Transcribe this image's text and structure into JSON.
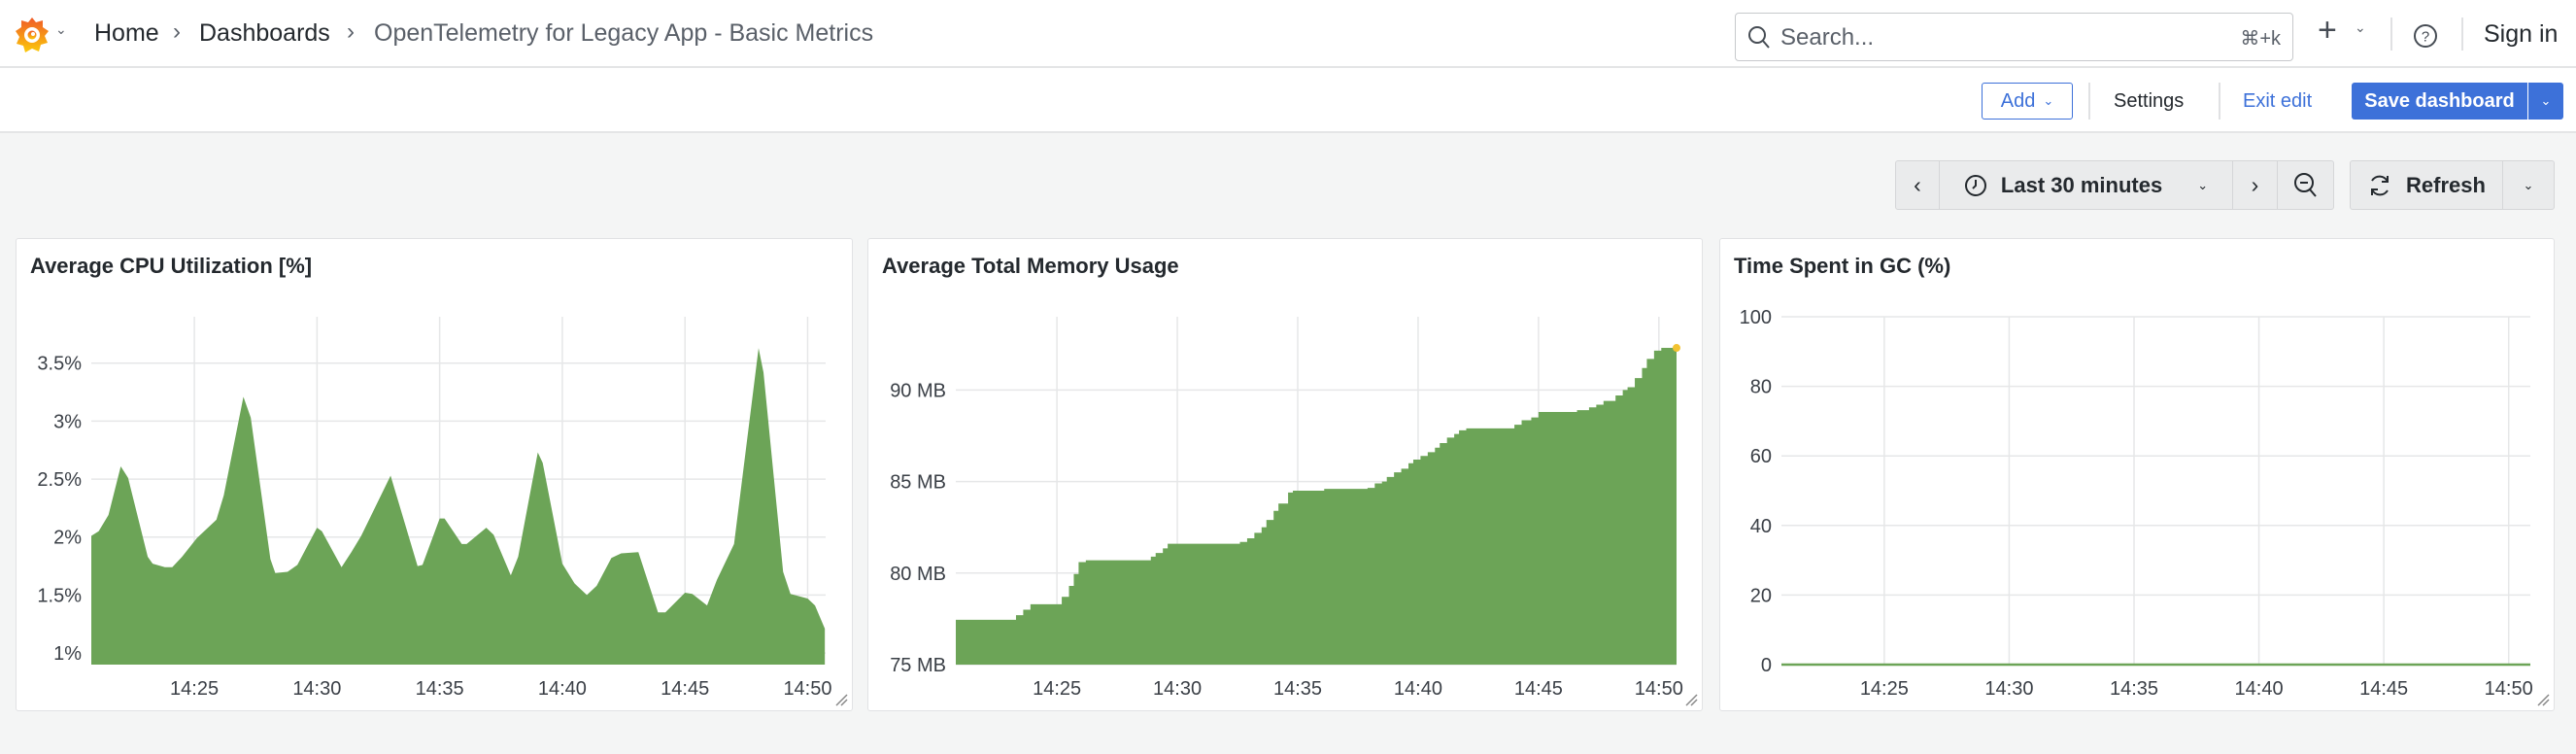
{
  "header": {
    "breadcrumb": [
      "Home",
      "Dashboards",
      "OpenTelemetry for Legacy App - Basic Metrics"
    ],
    "search": {
      "placeholder": "Search...",
      "shortcut": "⌘+k"
    },
    "sign_in": "Sign in"
  },
  "editbar": {
    "add": "Add",
    "settings": "Settings",
    "exit_edit": "Exit edit",
    "save": "Save dashboard"
  },
  "controls": {
    "time_range": "Last 30 minutes",
    "refresh": "Refresh"
  },
  "colors": {
    "series": "#6ca457",
    "accent": "#3d71d9",
    "last_point": "#f2c231"
  },
  "chart_data": [
    {
      "type": "area",
      "title": "Average CPU Utilization [%]",
      "ylim": [
        0.9,
        3.9
      ],
      "yticks": [
        [
          1,
          "1%"
        ],
        [
          1.5,
          "1.5%"
        ],
        [
          2,
          "2%"
        ],
        [
          2.5,
          "2.5%"
        ],
        [
          3,
          "3%"
        ],
        [
          3.5,
          "3.5%"
        ]
      ],
      "xlim": [
        "14:20:48",
        "14:50:44"
      ],
      "xticks": [
        "14:25",
        "14:30",
        "14:35",
        "14:40",
        "14:45",
        "14:50"
      ],
      "grid": true,
      "points": [
        [
          "14:20:48",
          2.01
        ],
        [
          "14:21:06",
          2.05
        ],
        [
          "14:21:30",
          2.19
        ],
        [
          "14:22:00",
          2.61
        ],
        [
          "14:22:18",
          2.51
        ],
        [
          "14:23:06",
          1.83
        ],
        [
          "14:23:18",
          1.77
        ],
        [
          "14:23:48",
          1.74
        ],
        [
          "14:24:06",
          1.74
        ],
        [
          "14:24:30",
          1.83
        ],
        [
          "14:25:06",
          1.99
        ],
        [
          "14:25:36",
          2.09
        ],
        [
          "14:25:54",
          2.15
        ],
        [
          "14:26:12",
          2.36
        ],
        [
          "14:27:00",
          3.21
        ],
        [
          "14:27:18",
          3.03
        ],
        [
          "14:28:06",
          1.81
        ],
        [
          "14:28:18",
          1.69
        ],
        [
          "14:28:48",
          1.7
        ],
        [
          "14:29:12",
          1.76
        ],
        [
          "14:30:00",
          2.08
        ],
        [
          "14:30:12",
          2.05
        ],
        [
          "14:31:00",
          1.74
        ],
        [
          "14:31:24",
          1.87
        ],
        [
          "14:31:48",
          2.01
        ],
        [
          "14:33:00",
          2.53
        ],
        [
          "14:34:06",
          1.75
        ],
        [
          "14:34:18",
          1.76
        ],
        [
          "14:35:00",
          2.16
        ],
        [
          "14:35:12",
          2.16
        ],
        [
          "14:35:54",
          1.94
        ],
        [
          "14:36:06",
          1.94
        ],
        [
          "14:36:54",
          2.08
        ],
        [
          "14:37:12",
          2.02
        ],
        [
          "14:37:54",
          1.67
        ],
        [
          "14:38:12",
          1.83
        ],
        [
          "14:39:00",
          2.73
        ],
        [
          "14:39:12",
          2.64
        ],
        [
          "14:40:00",
          1.77
        ],
        [
          "14:40:30",
          1.6
        ],
        [
          "14:41:00",
          1.5
        ],
        [
          "14:41:24",
          1.58
        ],
        [
          "14:42:00",
          1.82
        ],
        [
          "14:42:24",
          1.86
        ],
        [
          "14:43:06",
          1.87
        ],
        [
          "14:43:54",
          1.35
        ],
        [
          "14:44:12",
          1.35
        ],
        [
          "14:45:00",
          1.52
        ],
        [
          "14:45:18",
          1.51
        ],
        [
          "14:45:54",
          1.41
        ],
        [
          "14:46:18",
          1.63
        ],
        [
          "14:47:00",
          1.94
        ],
        [
          "14:48:00",
          3.63
        ],
        [
          "14:48:12",
          3.42
        ],
        [
          "14:49:00",
          1.7
        ],
        [
          "14:49:18",
          1.51
        ],
        [
          "14:50:00",
          1.47
        ],
        [
          "14:50:18",
          1.41
        ],
        [
          "14:50:42",
          1.21
        ]
      ]
    },
    {
      "type": "area",
      "step": true,
      "title": "Average Total Memory Usage",
      "ylim": [
        75,
        94
      ],
      "yticks": [
        [
          75,
          "75 MB"
        ],
        [
          80,
          "80 MB"
        ],
        [
          85,
          "85 MB"
        ],
        [
          90,
          "90 MB"
        ]
      ],
      "xlim": [
        "14:20:48",
        "14:50:44"
      ],
      "xticks": [
        "14:25",
        "14:30",
        "14:35",
        "14:40",
        "14:45",
        "14:50"
      ],
      "grid": true,
      "points": [
        [
          "14:20:48",
          77.45
        ],
        [
          "14:23:18",
          77.7
        ],
        [
          "14:23:36",
          78.0
        ],
        [
          "14:23:54",
          78.3
        ],
        [
          "14:25:12",
          78.7
        ],
        [
          "14:25:30",
          79.3
        ],
        [
          "14:25:42",
          79.95
        ],
        [
          "14:25:54",
          80.6
        ],
        [
          "14:26:12",
          80.7
        ],
        [
          "14:28:54",
          80.9
        ],
        [
          "14:29:06",
          81.1
        ],
        [
          "14:29:24",
          81.35
        ],
        [
          "14:29:36",
          81.6
        ],
        [
          "14:32:36",
          81.7
        ],
        [
          "14:32:54",
          81.9
        ],
        [
          "14:33:12",
          82.2
        ],
        [
          "14:33:30",
          82.5
        ],
        [
          "14:33:42",
          82.9
        ],
        [
          "14:34:00",
          83.4
        ],
        [
          "14:34:12",
          83.8
        ],
        [
          "14:34:36",
          84.4
        ],
        [
          "14:34:48",
          84.5
        ],
        [
          "14:36:06",
          84.6
        ],
        [
          "14:37:54",
          84.65
        ],
        [
          "14:38:12",
          84.9
        ],
        [
          "14:38:30",
          85.0
        ],
        [
          "14:38:42",
          85.25
        ],
        [
          "14:39:00",
          85.5
        ],
        [
          "14:39:18",
          85.7
        ],
        [
          "14:39:36",
          86.0
        ],
        [
          "14:39:48",
          86.2
        ],
        [
          "14:40:06",
          86.4
        ],
        [
          "14:40:24",
          86.6
        ],
        [
          "14:40:42",
          86.85
        ],
        [
          "14:40:54",
          87.1
        ],
        [
          "14:41:12",
          87.4
        ],
        [
          "14:41:30",
          87.6
        ],
        [
          "14:41:42",
          87.8
        ],
        [
          "14:42:00",
          87.9
        ],
        [
          "14:44:00",
          88.1
        ],
        [
          "14:44:18",
          88.35
        ],
        [
          "14:44:42",
          88.5
        ],
        [
          "14:45:00",
          88.8
        ],
        [
          "14:46:36",
          88.9
        ],
        [
          "14:47:06",
          89.05
        ],
        [
          "14:47:24",
          89.2
        ],
        [
          "14:47:42",
          89.4
        ],
        [
          "14:48:12",
          89.7
        ],
        [
          "14:48:30",
          90.0
        ],
        [
          "14:48:42",
          90.15
        ],
        [
          "14:49:00",
          90.65
        ],
        [
          "14:49:18",
          91.2
        ],
        [
          "14:49:30",
          91.7
        ],
        [
          "14:49:48",
          92.15
        ],
        [
          "14:50:06",
          92.3
        ],
        [
          "14:50:44",
          92.3
        ]
      ]
    },
    {
      "type": "line",
      "title": "Time Spent in GC (%)",
      "ylim": [
        0,
        100
      ],
      "yticks": [
        [
          0,
          "0"
        ],
        [
          20,
          "20"
        ],
        [
          40,
          "40"
        ],
        [
          60,
          "60"
        ],
        [
          80,
          "80"
        ],
        [
          100,
          "100"
        ]
      ],
      "xlim": [
        "14:20:53",
        "14:50:52"
      ],
      "xticks": [
        "14:25",
        "14:30",
        "14:35",
        "14:40",
        "14:45",
        "14:50"
      ],
      "grid": true,
      "points": [
        [
          "14:20:53",
          0
        ],
        [
          "14:50:52",
          0
        ]
      ]
    }
  ]
}
